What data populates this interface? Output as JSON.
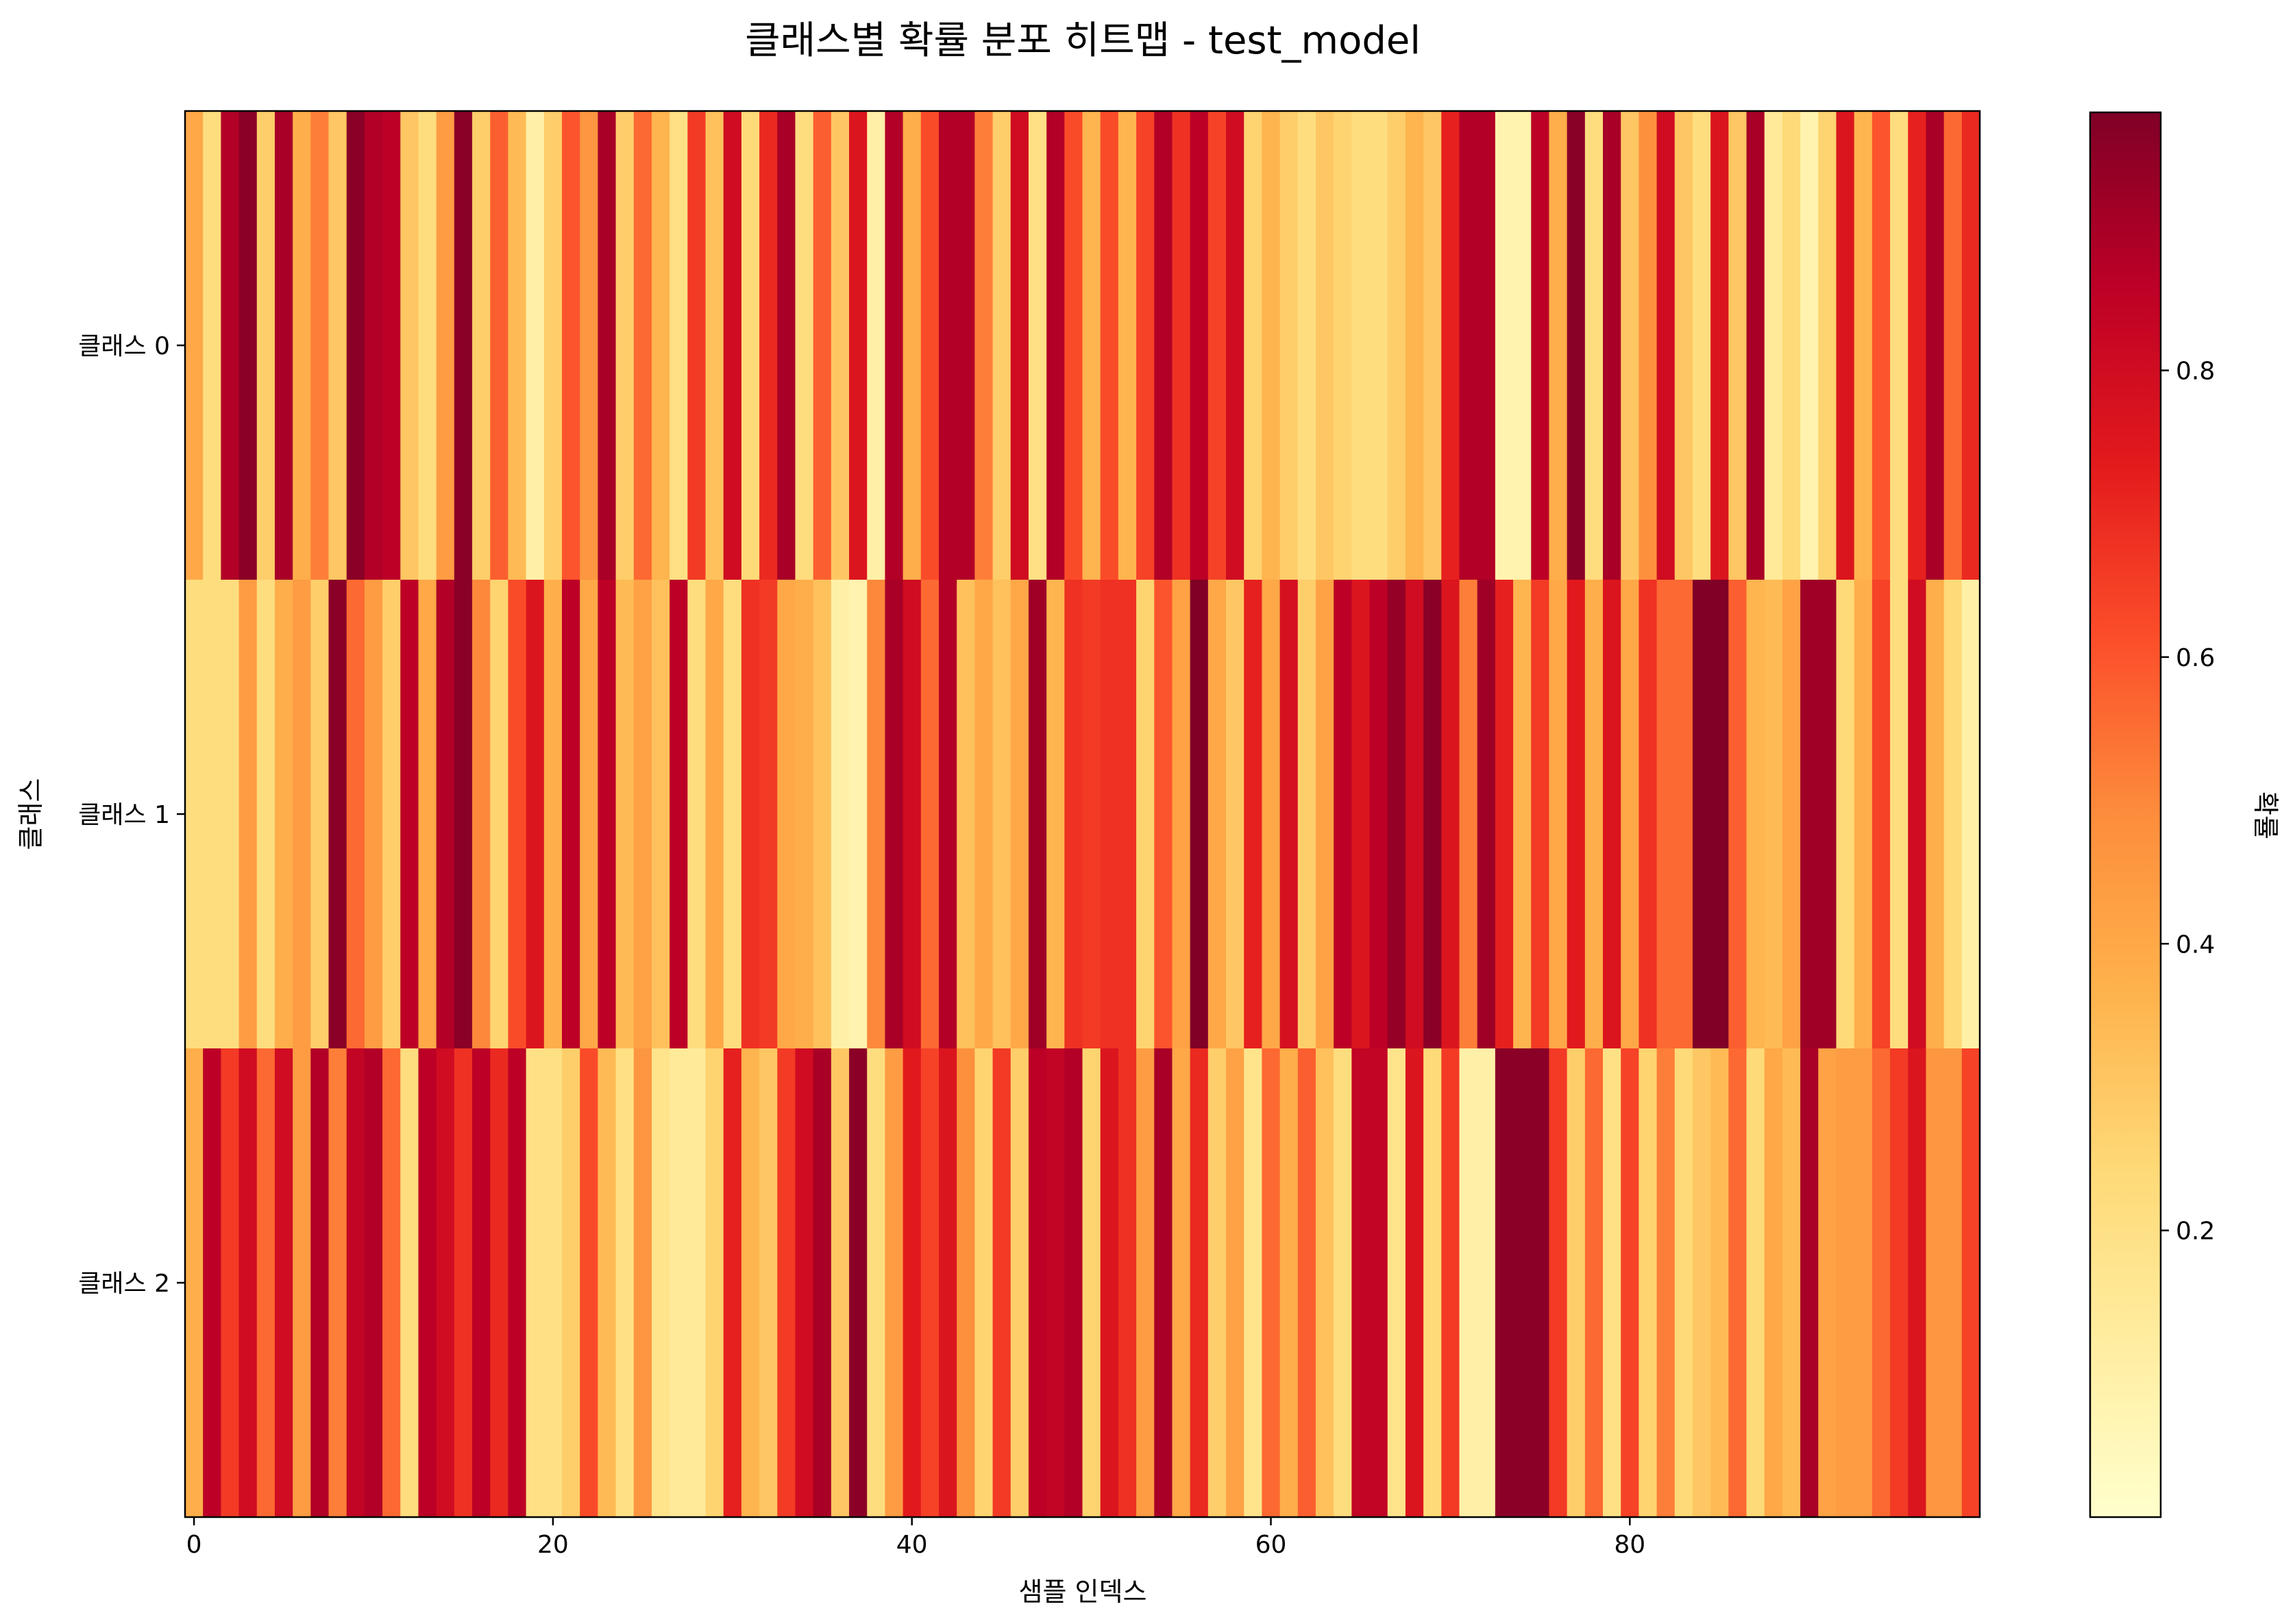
{
  "chart_data": {
    "type": "heatmap",
    "title": "클래스별 확률 분포 히트맵 - test_model",
    "xlabel": "샘플 인덱스",
    "ylabel": "클래스",
    "colorbar_label": "확률",
    "rows": [
      "클래스 0",
      "클래스 1",
      "클래스 2"
    ],
    "x_ticks": [
      0,
      20,
      40,
      60,
      80
    ],
    "colorbar_ticks": [
      "0.2",
      "0.4",
      "0.6",
      "0.8"
    ],
    "colorbar_range": [
      0.0,
      0.98
    ],
    "colormap": "YlOrRd",
    "colormap_stops": [
      "#ffffcc",
      "#ffeda0",
      "#fed976",
      "#feb24c",
      "#fd8d3c",
      "#fc4e2a",
      "#e31a1c",
      "#bd0026",
      "#800026"
    ],
    "values": [
      [
        0.4,
        0.22,
        0.88,
        0.96,
        0.28,
        0.9,
        0.38,
        0.52,
        0.3,
        0.96,
        0.88,
        0.86,
        0.3,
        0.22,
        0.44,
        0.96,
        0.28,
        0.58,
        0.34,
        0.1,
        0.28,
        0.6,
        0.46,
        0.9,
        0.28,
        0.56,
        0.36,
        0.2,
        0.66,
        0.32,
        0.8,
        0.24,
        0.7,
        0.9,
        0.22,
        0.58,
        0.3,
        0.76,
        0.1,
        0.88,
        0.38,
        0.62,
        0.88,
        0.88,
        0.52,
        0.28,
        0.8,
        0.2,
        0.88,
        0.62,
        0.36,
        0.62,
        0.36,
        0.64,
        0.88,
        0.68,
        0.86,
        0.64,
        0.8,
        0.26,
        0.36,
        0.28,
        0.22,
        0.3,
        0.26,
        0.22,
        0.22,
        0.28,
        0.36,
        0.3,
        0.72,
        0.88,
        0.88,
        0.08,
        0.08,
        0.86,
        0.38,
        0.96,
        0.22,
        0.9,
        0.3,
        0.48,
        0.8,
        0.3,
        0.22,
        0.76,
        0.3,
        0.9,
        0.14,
        0.24,
        0.08,
        0.26,
        0.76,
        0.36,
        0.6,
        0.22,
        0.72,
        0.9,
        0.56,
        0.7
      ],
      [
        0.22,
        0.22,
        0.22,
        0.44,
        0.22,
        0.38,
        0.44,
        0.28,
        0.96,
        0.56,
        0.44,
        0.28,
        0.86,
        0.4,
        0.88,
        0.96,
        0.5,
        0.26,
        0.62,
        0.76,
        0.38,
        0.86,
        0.4,
        0.86,
        0.34,
        0.42,
        0.32,
        0.86,
        0.22,
        0.4,
        0.22,
        0.68,
        0.66,
        0.4,
        0.38,
        0.32,
        0.1,
        0.08,
        0.5,
        0.9,
        0.8,
        0.56,
        0.88,
        0.32,
        0.4,
        0.32,
        0.4,
        0.92,
        0.36,
        0.68,
        0.66,
        0.68,
        0.68,
        0.26,
        0.6,
        0.42,
        0.98,
        0.4,
        0.3,
        0.72,
        0.4,
        0.78,
        0.28,
        0.42,
        0.86,
        0.76,
        0.86,
        0.94,
        0.8,
        0.96,
        0.76,
        0.52,
        0.92,
        0.72,
        0.36,
        0.66,
        0.4,
        0.74,
        0.38,
        0.76,
        0.4,
        0.68,
        0.56,
        0.56,
        0.98,
        0.98,
        0.58,
        0.36,
        0.34,
        0.42,
        0.92,
        0.92,
        0.24,
        0.38,
        0.64,
        0.22,
        0.8,
        0.38,
        0.24,
        0.1
      ],
      [
        0.38,
        0.86,
        0.66,
        0.8,
        0.56,
        0.8,
        0.44,
        0.88,
        0.52,
        0.84,
        0.88,
        0.56,
        0.22,
        0.86,
        0.8,
        0.68,
        0.86,
        0.7,
        0.86,
        0.2,
        0.2,
        0.28,
        0.62,
        0.34,
        0.2,
        0.46,
        0.18,
        0.14,
        0.14,
        0.26,
        0.72,
        0.36,
        0.3,
        0.66,
        0.8,
        0.9,
        0.3,
        0.96,
        0.22,
        0.44,
        0.74,
        0.64,
        0.76,
        0.48,
        0.26,
        0.66,
        0.28,
        0.86,
        0.84,
        0.88,
        0.26,
        0.76,
        0.68,
        0.44,
        0.9,
        0.4,
        0.7,
        0.28,
        0.42,
        0.18,
        0.56,
        0.38,
        0.58,
        0.32,
        0.22,
        0.84,
        0.84,
        0.18,
        0.76,
        0.24,
        0.66,
        0.1,
        0.1,
        0.96,
        0.96,
        0.96,
        0.66,
        0.28,
        0.56,
        0.2,
        0.64,
        0.26,
        0.52,
        0.24,
        0.3,
        0.34,
        0.56,
        0.24,
        0.4,
        0.34,
        0.9,
        0.42,
        0.44,
        0.44,
        0.56,
        0.66,
        0.76,
        0.46,
        0.46,
        0.64
      ]
    ]
  }
}
